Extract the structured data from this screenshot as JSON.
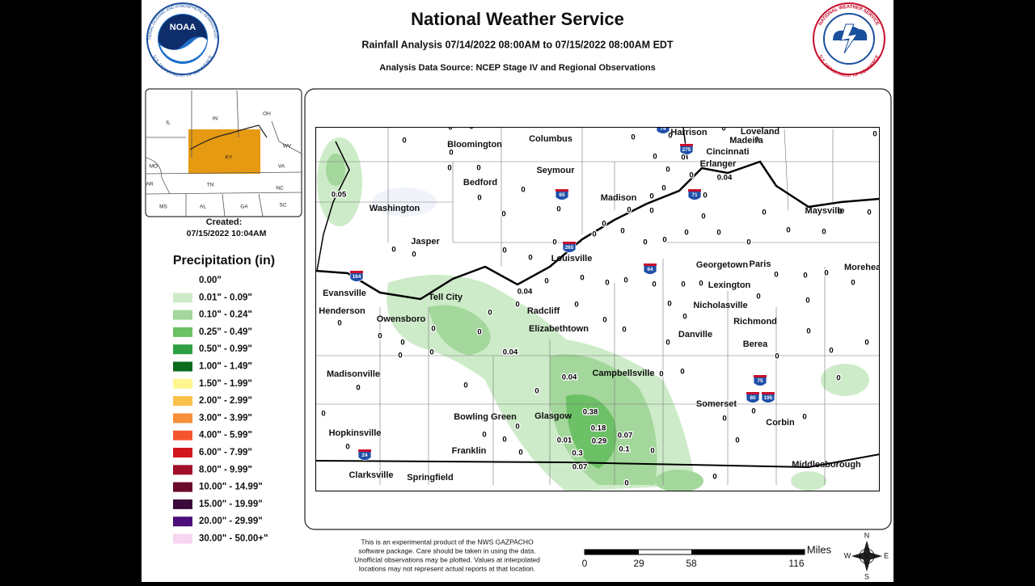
{
  "header": {
    "title": "National Weather Service",
    "subtitle": "Rainfall Analysis 07/14/2022 08:00AM to 07/15/2022 08:00AM EDT",
    "source": "Analysis Data Source: NCEP Stage IV and Regional Observations"
  },
  "logos": {
    "noaa": {
      "name": "NOAA",
      "ring_top": "NATIONAL OCEANIC AND ATMOSPHERIC ADMINISTRATION",
      "ring_bottom": "U.S. DEPARTMENT OF COMMERCE"
    },
    "nws": {
      "ring_top": "NATIONAL WEATHER SERVICE",
      "ring_bottom": "U.S. DEPARTMENT OF COMMERCE"
    }
  },
  "inset": {
    "states": [
      "IL",
      "IN",
      "OH",
      "KY",
      "MO",
      "WV",
      "VA",
      "TN",
      "NC",
      "AR",
      "MS",
      "AL",
      "GA",
      "SC"
    ]
  },
  "created": {
    "label": "Created:",
    "time": "07/15/2022 10:04AM"
  },
  "legend": {
    "title": "Precipitation (in)",
    "items": [
      {
        "label": "0.00\"",
        "color": "#ffffff"
      },
      {
        "label": "0.01\" - 0.09\"",
        "color": "#cdebc8"
      },
      {
        "label": "0.10\" - 0.24\"",
        "color": "#a3d79b"
      },
      {
        "label": "0.25\" - 0.49\"",
        "color": "#6cc066"
      },
      {
        "label": "0.50\" - 0.99\"",
        "color": "#2ea043"
      },
      {
        "label": "1.00\" - 1.49\"",
        "color": "#0b6b1f"
      },
      {
        "label": "1.50\" - 1.99\"",
        "color": "#fff68f"
      },
      {
        "label": "2.00\" - 2.99\"",
        "color": "#fbc04a"
      },
      {
        "label": "3.00\" - 3.99\"",
        "color": "#f7903a"
      },
      {
        "label": "4.00\" - 5.99\"",
        "color": "#f4552e"
      },
      {
        "label": "6.00\" - 7.99\"",
        "color": "#d2161e"
      },
      {
        "label": "8.00\" - 9.99\"",
        "color": "#a0102a"
      },
      {
        "label": "10.00\" - 14.99\"",
        "color": "#6b0a2a"
      },
      {
        "label": "15.00\" - 19.99\"",
        "color": "#3b0a3a"
      },
      {
        "label": "20.00\" - 29.99\"",
        "color": "#4b0e7a"
      },
      {
        "label": "30.00\" - 50.00+\"",
        "color": "#f7d6f2"
      }
    ]
  },
  "map": {
    "cities": [
      "Bloomington",
      "Columbus",
      "Harrison",
      "Loveland",
      "Madeira",
      "Cincinnati",
      "Erlanger",
      "Seymour",
      "Bedford",
      "Madison",
      "Washington",
      "Maysville",
      "Jasper",
      "Louisville",
      "Georgetown",
      "Paris",
      "Morehead",
      "Lexington",
      "Evansville",
      "Tell City",
      "Henderson",
      "Owensboro",
      "Radcliff",
      "Nicholasville",
      "Richmond",
      "Elizabethtown",
      "Danville",
      "Berea",
      "Madisonville",
      "Campbellsville",
      "Somerset",
      "Bowling Green",
      "Glasgow",
      "Corbin",
      "Hopkinsville",
      "Franklin",
      "Middlesborough",
      "Clarksville",
      "Springfield"
    ],
    "highways": [
      "74",
      "275",
      "71",
      "65",
      "265",
      "64",
      "164",
      "75",
      "80",
      "195",
      "24"
    ],
    "observations": [
      0.05,
      0.04,
      0.04,
      0.04,
      0.04,
      0.38,
      0.18,
      0.29,
      0.07,
      0.01,
      0.1,
      0.3,
      0.07,
      0,
      0,
      0,
      0,
      0,
      0,
      0,
      0,
      0,
      0,
      0,
      0,
      0,
      0,
      0,
      0,
      0,
      0,
      0,
      0,
      0,
      0,
      0,
      0,
      0,
      0,
      0,
      0,
      0,
      0,
      0,
      0,
      0,
      0,
      0,
      0,
      0,
      0,
      0,
      0,
      0,
      0,
      0,
      0,
      0,
      0,
      0,
      0,
      0,
      0,
      0,
      0,
      0,
      0,
      0,
      0,
      0,
      0,
      0,
      0,
      0,
      0,
      0,
      0,
      0,
      0,
      0,
      0,
      0,
      0,
      0,
      0,
      0,
      0,
      0,
      0,
      0,
      0,
      0,
      0,
      0,
      0,
      0,
      0,
      0,
      0,
      0,
      0,
      0,
      0,
      0,
      0,
      0,
      0,
      0,
      0,
      0,
      0,
      0,
      0
    ]
  },
  "footer": {
    "disclaimer": [
      "This is an experimental product of the NWS GAZPACHO",
      "software package. Care should be taken in using the data.",
      "Unofficial observations may be plotted. Values at interpolated",
      "locations may not represent actual reports at that location."
    ]
  },
  "scale": {
    "unit": "Miles",
    "labels": [
      0,
      29,
      58,
      116
    ]
  },
  "compass": [
    "N",
    "E",
    "S",
    "W"
  ]
}
